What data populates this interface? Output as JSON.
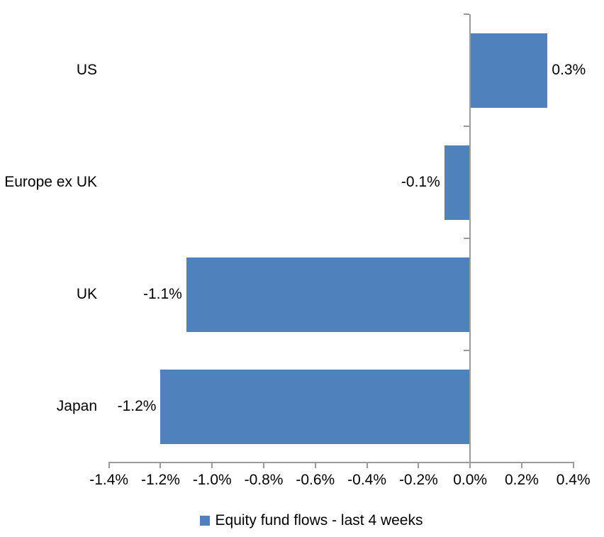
{
  "chart_data": {
    "type": "bar",
    "orientation": "horizontal",
    "title": "",
    "categories": [
      "US",
      "Europe ex UK",
      "UK",
      "Japan"
    ],
    "values": [
      0.3,
      -0.1,
      -1.1,
      -1.2
    ],
    "data_labels": [
      "0.3%",
      "-0.1%",
      "-1.1%",
      "-1.2%"
    ],
    "series_name": "Equity fund flows - last 4 weeks",
    "xlim": [
      -1.4,
      0.4
    ],
    "x_tick_values": [
      -1.4,
      -1.2,
      -1.0,
      -0.8,
      -0.6,
      -0.4,
      -0.2,
      0.0,
      0.2,
      0.4
    ],
    "x_tick_labels": [
      "-1.4%",
      "-1.2%",
      "-1.0%",
      "-0.8%",
      "-0.6%",
      "-0.4%",
      "-0.2%",
      "0.0%",
      "0.2%",
      "0.4%"
    ],
    "grid": false,
    "legend_position": "bottom",
    "colors": {
      "bar": "#4F81BD",
      "axis": "#9B9B9B",
      "text": "#000000",
      "background": "#FFFFFF"
    }
  }
}
